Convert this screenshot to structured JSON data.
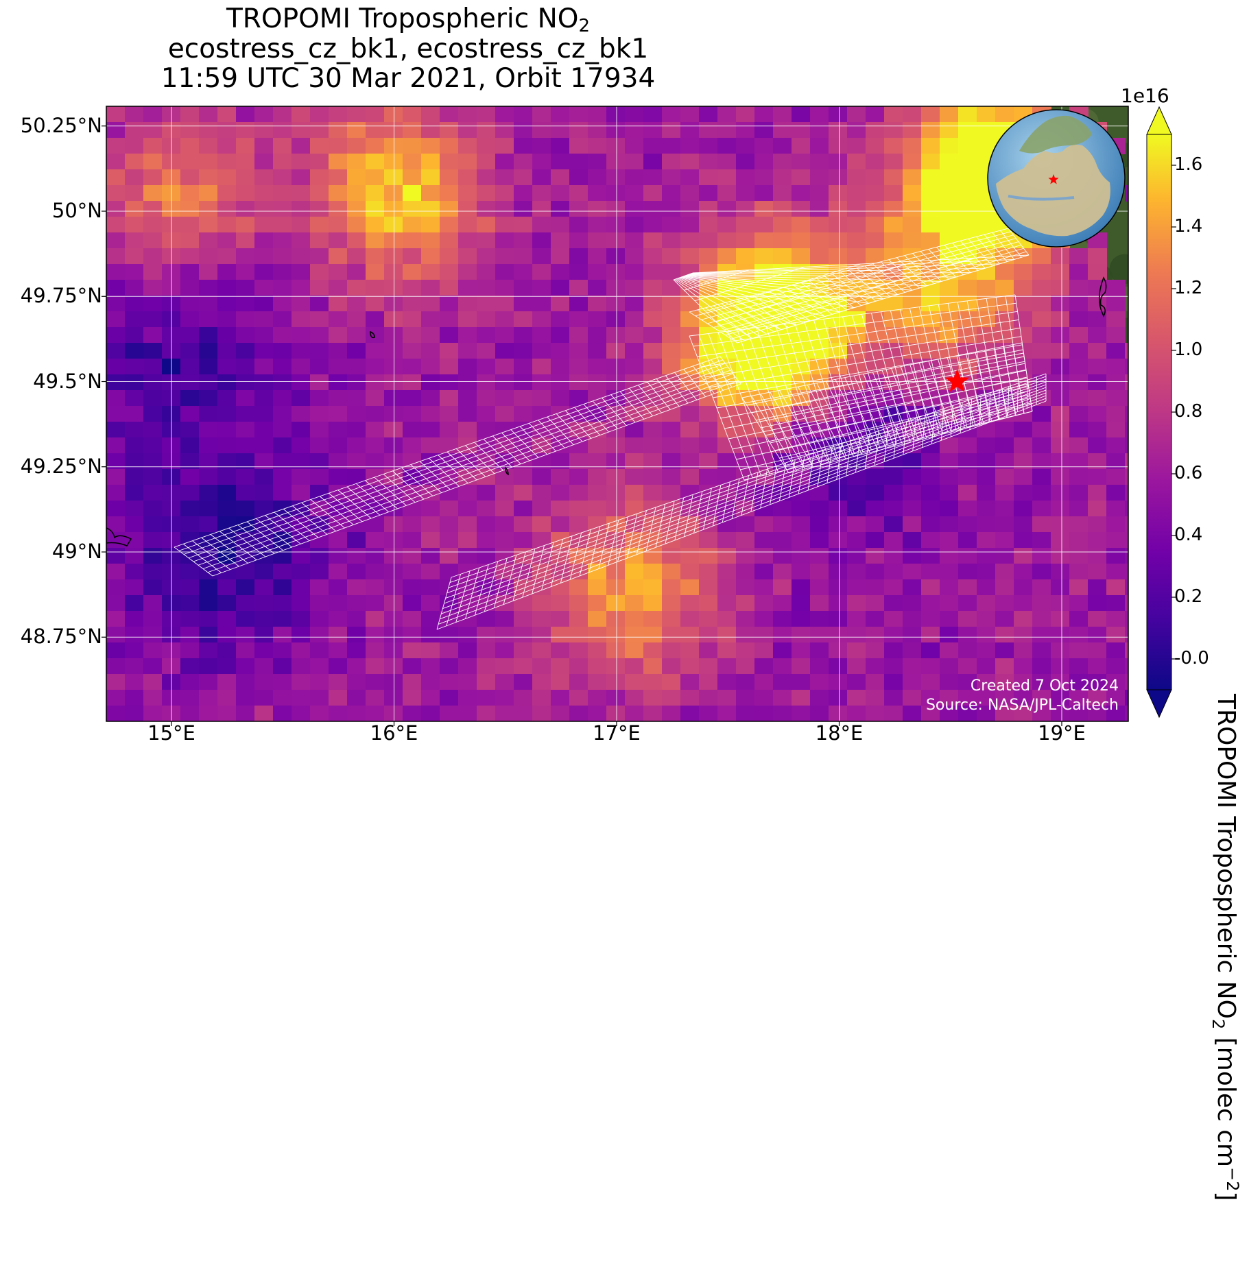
{
  "title": {
    "line1_main": "TROPOMI Tropospheric NO",
    "line1_sub": "2",
    "line2": "ecostress_cz_bk1, ecostress_cz_bk1",
    "line3": "11:59 UTC 30 Mar 2021, Orbit 17934"
  },
  "map": {
    "lon_range": [
      14.7,
      19.3
    ],
    "lat_range": [
      48.5,
      50.3
    ],
    "lon_ticks": [
      {
        "value": 15,
        "label": "15°E"
      },
      {
        "value": 16,
        "label": "16°E"
      },
      {
        "value": 17,
        "label": "17°E"
      },
      {
        "value": 18,
        "label": "18°E"
      },
      {
        "value": 19,
        "label": "19°E"
      }
    ],
    "lat_ticks": [
      {
        "value": 50.25,
        "label": "50.25°N"
      },
      {
        "value": 50.0,
        "label": "50°N"
      },
      {
        "value": 49.75,
        "label": "49.75°N"
      },
      {
        "value": 49.5,
        "label": "49.5°N"
      },
      {
        "value": 49.25,
        "label": "49.25°N"
      },
      {
        "value": 49.0,
        "label": "49°N"
      },
      {
        "value": 48.75,
        "label": "48.75°N"
      }
    ],
    "gridlines": true,
    "target_marker": {
      "lon": 18.53,
      "lat": 49.5,
      "color": "#ff0000",
      "icon": "star-icon"
    },
    "no_data_background": "satellite-terrain-green",
    "inset_globe": {
      "icon": "globe-icon",
      "marker_color": "#ff0000"
    }
  },
  "colorbar": {
    "colormap": "plasma",
    "range": [
      -0.1,
      1.7
    ],
    "exponent_label": "1e16",
    "ticks": [
      "-0.0",
      "0.2",
      "0.4",
      "0.6",
      "0.8",
      "1.0",
      "1.2",
      "1.4",
      "1.6"
    ],
    "title_main": "TROPOMI Tropospheric NO",
    "title_sub": "2",
    "title_units_open": " [molec cm",
    "title_units_sup": "−2",
    "title_units_close": "]"
  },
  "credits": {
    "created": "Created 7 Oct 2024",
    "source": "Source: NASA/JPL-Caltech"
  },
  "colors": {
    "plasma_low": "#0d0887",
    "plasma_mid": "#9c179e",
    "plasma_high": "#f0f921",
    "footprint_grid": "#ffffff",
    "terrain": "#3d5a2a"
  }
}
